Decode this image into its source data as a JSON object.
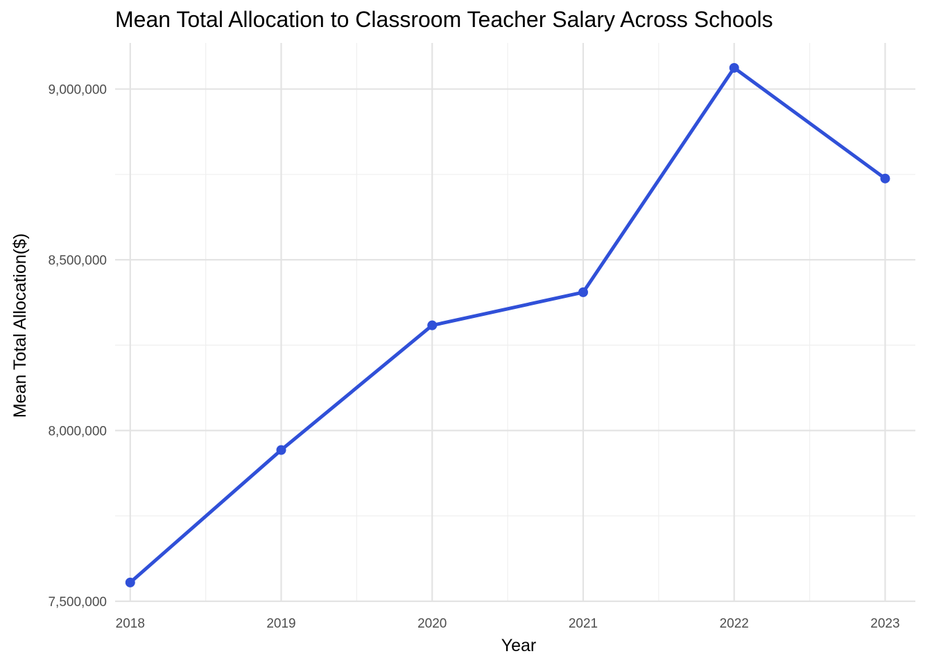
{
  "chart_data": {
    "type": "line",
    "title": "Mean Total Allocation to Classroom Teacher Salary Across Schools",
    "xlabel": "Year",
    "ylabel": "Mean Total Allocation($)",
    "x": [
      2018,
      2019,
      2020,
      2021,
      2022,
      2023
    ],
    "x_tick_labels": [
      "2018",
      "2019",
      "2020",
      "2021",
      "2022",
      "2023"
    ],
    "y_ticks": [
      7500000,
      8000000,
      8500000,
      9000000
    ],
    "y_tick_labels": [
      "7,500,000",
      "8,000,000",
      "8,500,000",
      "9,000,000"
    ],
    "series": [
      {
        "values": [
          7555000,
          7943000,
          8308000,
          8405000,
          9062000,
          8738000
        ]
      }
    ],
    "xlim": [
      2017.9,
      2023.2
    ],
    "ylim": [
      7500000,
      9135000
    ],
    "grid": true,
    "legend": "none",
    "colors": {
      "line": "#3050d8",
      "grid_major": "#e3e3e3",
      "grid_minor": "#efefef"
    }
  }
}
